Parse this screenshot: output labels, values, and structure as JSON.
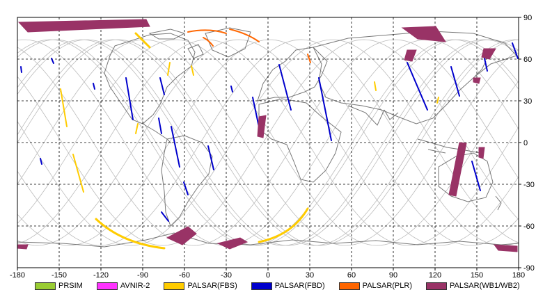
{
  "map": {
    "lon_ticks": [
      "-180",
      "-150",
      "-120",
      "-90",
      "-60",
      "-30",
      "0",
      "30",
      "60",
      "90",
      "120",
      "150",
      "180"
    ],
    "lat_ticks": [
      "90",
      "60",
      "30",
      "0",
      "-30",
      "-60",
      "-90"
    ],
    "grid": "dashed"
  },
  "legend": [
    {
      "label": "PRSIM",
      "color": "#99cc33"
    },
    {
      "label": "AVNIR-2",
      "color": "#ff33ff"
    },
    {
      "label": "PALSAR(FBS)",
      "color": "#ffcc00"
    },
    {
      "label": "PALSAR(FBD)",
      "color": "#0000cc"
    },
    {
      "label": "PALSAR(PLR)",
      "color": "#ff6600"
    },
    {
      "label": "PALSAR(WB1/WB2)",
      "color": "#993366"
    }
  ],
  "colors": {
    "orbit_track": "#bbbbbb",
    "coastline": "#777777",
    "grid": "#000000"
  }
}
